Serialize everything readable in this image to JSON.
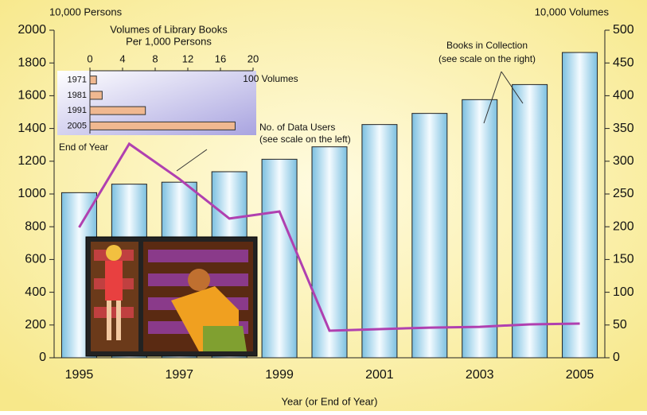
{
  "chart_data": [
    {
      "type": "bar",
      "y_unit_label": "10,000 Persons",
      "y2_unit_label": "10,000 Volumes",
      "x_label": "Year (or End of Year)",
      "categories": [
        "1995",
        null,
        "1997",
        null,
        "1999",
        null,
        "2001",
        null,
        "2003",
        null,
        "2005"
      ],
      "series": [
        {
          "name": "Books in Collection",
          "type": "bar",
          "axis": "y2",
          "color": "#a8d8ec",
          "values": [
            252,
            265,
            268,
            284,
            303,
            322,
            356,
            373,
            394,
            417,
            466
          ]
        },
        {
          "name": "No. of Data Users",
          "type": "line",
          "axis": "y",
          "color": "#b040b0",
          "values": [
            796,
            1306,
            1092,
            850,
            893,
            165,
            175,
            184,
            189,
            204,
            209
          ]
        }
      ],
      "annotations": [
        "(see scale on the right)",
        "(see scale on the left)"
      ],
      "ylim": [
        0,
        2000
      ],
      "yticks": [
        0,
        200,
        400,
        600,
        800,
        1000,
        1200,
        1400,
        1600,
        1800,
        2000
      ],
      "y2lim": [
        0,
        500
      ],
      "y2ticks": [
        0,
        50,
        100,
        150,
        200,
        250,
        300,
        350,
        400,
        450,
        500
      ]
    },
    {
      "type": "barh",
      "title": "Volumes of Library Books",
      "subtitle": "Per 1,000 Persons",
      "x_unit_label": "100 Volumes",
      "y_label": "End of Year",
      "categories": [
        "1971",
        "1981",
        "1991",
        "2005"
      ],
      "values": [
        0.8,
        1.5,
        6.8,
        17.8
      ],
      "color": "#f0b890",
      "xlim": [
        0,
        20
      ],
      "xticks": [
        0,
        4,
        8,
        12,
        16,
        20
      ]
    }
  ]
}
